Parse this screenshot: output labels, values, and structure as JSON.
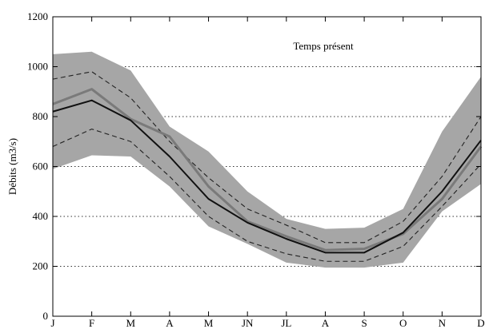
{
  "chart_data": {
    "type": "line",
    "title": "",
    "annotation": "Temps présent",
    "xlabel": "",
    "ylabel": "Débits (m3/s)",
    "categories": [
      "J",
      "F",
      "M",
      "A",
      "M",
      "JN",
      "JL",
      "A",
      "S",
      "O",
      "N",
      "D"
    ],
    "ylim": [
      0,
      1200
    ],
    "yticks": [
      0,
      200,
      400,
      600,
      800,
      1000,
      1200
    ],
    "grid": {
      "y": "dotted",
      "x": false
    },
    "band": {
      "upper": [
        1050,
        1060,
        985,
        760,
        660,
        500,
        390,
        350,
        355,
        430,
        740,
        960
      ],
      "lower": [
        590,
        645,
        640,
        520,
        360,
        290,
        215,
        195,
        195,
        215,
        420,
        530
      ]
    },
    "series": [
      {
        "style": "dashed-upper",
        "values": [
          950,
          980,
          875,
          700,
          555,
          430,
          365,
          295,
          295,
          380,
          560,
          800
        ]
      },
      {
        "style": "dashed-lower",
        "values": [
          680,
          750,
          700,
          560,
          400,
          300,
          250,
          220,
          220,
          280,
          440,
          610
        ]
      },
      {
        "style": "black-mean",
        "values": [
          820,
          865,
          785,
          640,
          470,
          375,
          310,
          255,
          255,
          335,
          500,
          705
        ]
      },
      {
        "style": "gray-median",
        "values": [
          850,
          910,
          790,
          720,
          520,
          380,
          320,
          265,
          270,
          330,
          470,
          680
        ]
      }
    ],
    "colors": {
      "band": "#a6a6a6",
      "mean": "#111111",
      "median": "#7a7a7a",
      "dashed": "#222222",
      "grid": "#333333"
    }
  }
}
